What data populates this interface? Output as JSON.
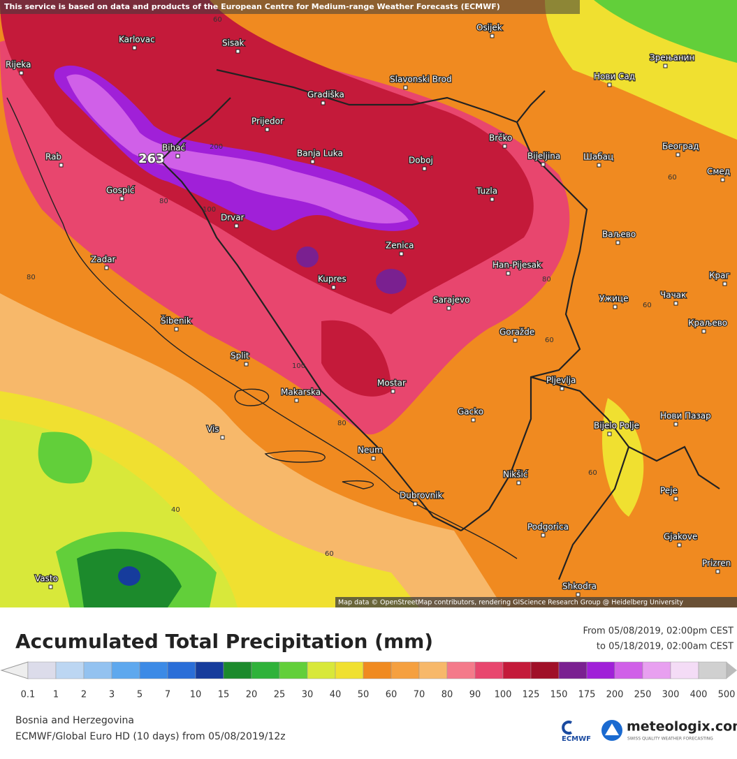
{
  "banner": "This service is based on data and products of the European Centre for Medium-range Weather Forecasts (ECMWF)",
  "map": {
    "cities": [
      "Karlovac",
      "Sisak",
      "Osijek",
      "Зрењанин",
      "Rijeka",
      "Нови Сад",
      "Gradiška",
      "Slavonski Brod",
      "Prijedor",
      "Brčko",
      "Bihać",
      "Banja Luka",
      "Doboj",
      "Bijeljina",
      "Шабац",
      "Београд",
      "Rab",
      "Tuzla",
      "Смед",
      "Gospić",
      "Drvar",
      "Ваљево",
      "Zenica",
      "Zadar",
      "Han-Pijesak",
      "Kupres",
      "Краг",
      "Ужице",
      "Чачак",
      "Sarajevo",
      "Šibenik",
      "Краљево",
      "Goražde",
      "Split",
      "Mostar",
      "Makarska",
      "Pljevlja",
      "Gacko",
      "Нови Пазар",
      "Bijelo Polje",
      "Vis",
      "Neum",
      "Nikšić",
      "Peje",
      "Dubrovnik",
      "Podgorica",
      "Gjakove",
      "Prizren",
      "Shkodra",
      "Vasto"
    ],
    "contour_labels": [
      60,
      60,
      60,
      60,
      60,
      80,
      80,
      80,
      80,
      100,
      100,
      40,
      60,
      200
    ],
    "max_label": 263,
    "attribution": "Map data © OpenStreetMap contributors, rendering GIScience Research Group @ Heidelberg University"
  },
  "legend": {
    "title": "Accumulated Total Precipitation (mm)",
    "period_from": "From 05/08/2019, 02:00pm CEST",
    "period_to": "to 05/18/2019, 02:00am CEST",
    "levels": [
      0.1,
      1,
      2,
      3,
      5,
      7,
      10,
      15,
      20,
      25,
      30,
      40,
      50,
      60,
      70,
      80,
      90,
      100,
      125,
      150,
      175,
      200,
      250,
      300,
      400,
      500
    ],
    "colors": [
      "#dcdcea",
      "#bcd6f2",
      "#93c2f0",
      "#5ea8ee",
      "#3c8ae6",
      "#2a6ed8",
      "#163c9c",
      "#1c8a2c",
      "#2fb23a",
      "#62cf3a",
      "#d8e83a",
      "#f0e030",
      "#f08a20",
      "#f5a040",
      "#f7b86a",
      "#f47a8a",
      "#e8466e",
      "#c41a3a",
      "#a01028",
      "#7a2090",
      "#a020d8",
      "#d060e8",
      "#e8a0f0",
      "#f4dcf6",
      "#d0d0d0"
    ]
  },
  "footer": {
    "region": "Bosnia and Herzegovina",
    "model": "ECMWF/Global Euro HD (10 days) from 05/08/2019/12z",
    "ecmwf": "ECMWF",
    "brand": "meteologix.com",
    "tagline": "SWISS QUALITY WEATHER FORECASTING"
  }
}
